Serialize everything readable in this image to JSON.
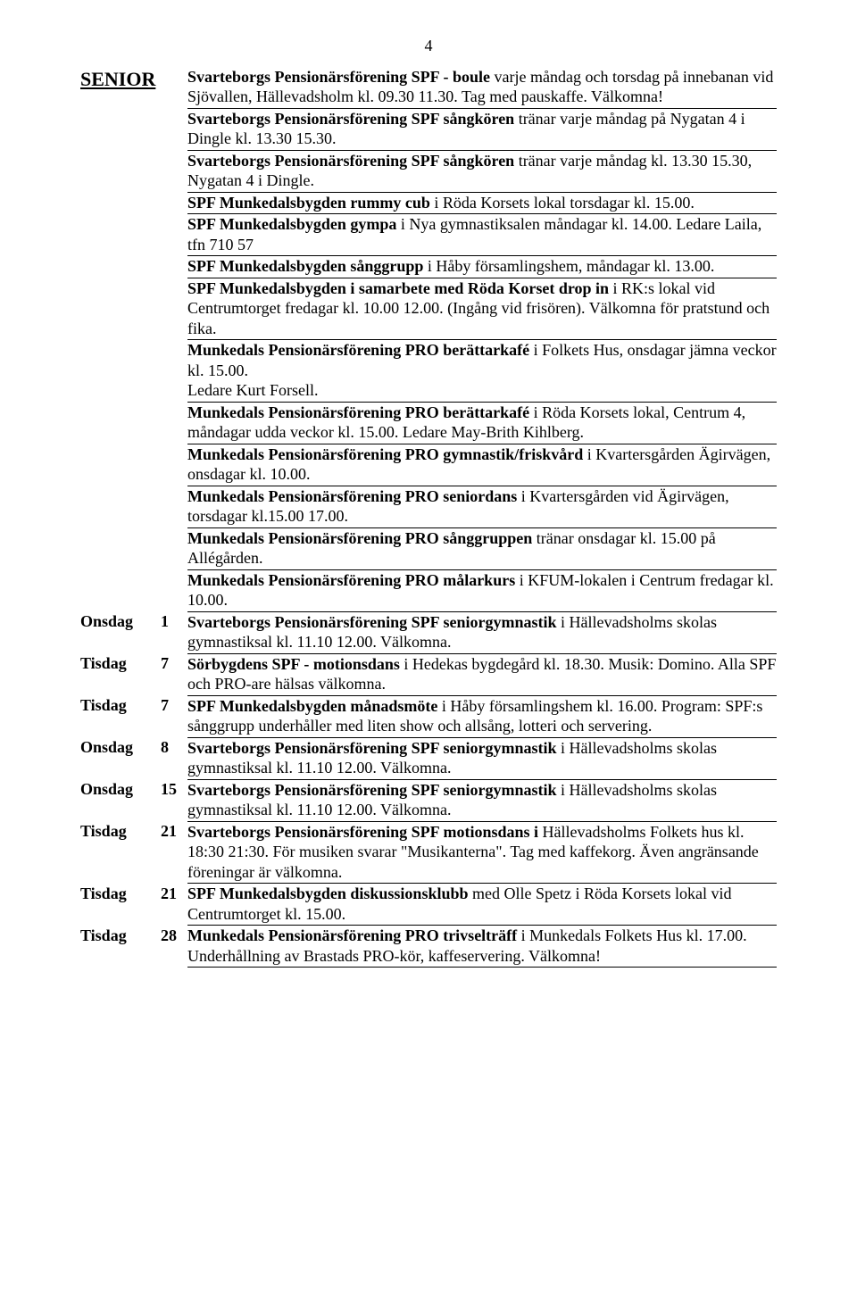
{
  "page_number": "4",
  "heading": "SENIOR",
  "rows": [
    {
      "day": "",
      "num": "",
      "parts": [
        {
          "text": "Svarteborgs Pensionärsförening SPF - boule ",
          "bold": true
        },
        {
          "text": "varje måndag och torsdag på innebanan vid Sjövallen, Hällevadsholm kl. 09.30 11.30. Tag med pauskaffe. Välkomna!",
          "bold": false
        }
      ]
    },
    {
      "day": "",
      "num": "",
      "parts": [
        {
          "text": "Svarteborgs Pensionärsförening SPF sångkören ",
          "bold": true
        },
        {
          "text": "tränar varje måndag på Nygatan 4 i Dingle kl. 13.30 15.30.",
          "bold": false
        }
      ]
    },
    {
      "day": "",
      "num": "",
      "parts": [
        {
          "text": "Svarteborgs Pensionärsförening SPF sångkören ",
          "bold": true
        },
        {
          "text": "tränar varje måndag kl. 13.30 15.30, Nygatan 4 i Dingle.",
          "bold": false
        }
      ]
    },
    {
      "day": "",
      "num": "",
      "parts": [
        {
          "text": "SPF Munkedalsbygden rummy cub ",
          "bold": true
        },
        {
          "text": "i Röda Korsets lokal torsdagar kl. 15.00.",
          "bold": false
        }
      ]
    },
    {
      "day": "",
      "num": "",
      "parts": [
        {
          "text": "SPF Munkedalsbygden gympa ",
          "bold": true
        },
        {
          "text": "i Nya gymnastiksalen måndagar kl. 14.00. Ledare Laila, tfn 710 57",
          "bold": false
        }
      ]
    },
    {
      "day": "",
      "num": "",
      "parts": [
        {
          "text": "SPF Munkedalsbygden sånggrupp ",
          "bold": true
        },
        {
          "text": "i Håby församlingshem, måndagar kl. 13.00.",
          "bold": false
        }
      ]
    },
    {
      "day": "",
      "num": "",
      "parts": [
        {
          "text": "SPF Munkedalsbygden i samarbete med Röda Korset drop in ",
          "bold": true
        },
        {
          "text": "i RK:s lokal vid Centrumtorget fredagar kl. 10.00 12.00. (Ingång vid frisören). Välkomna för pratstund och fika.",
          "bold": false
        }
      ]
    },
    {
      "day": "",
      "num": "",
      "parts": [
        {
          "text": "Munkedals Pensionärsförening PRO berättarkafé ",
          "bold": true
        },
        {
          "text": "i Folkets Hus, onsdagar jämna veckor kl. 15.00.",
          "bold": false
        },
        {
          "text": "\nLedare Kurt Forsell.",
          "bold": false
        }
      ]
    },
    {
      "day": "",
      "num": "",
      "parts": [
        {
          "text": "Munkedals Pensionärsförening PRO berättarkafé ",
          "bold": true
        },
        {
          "text": "i Röda Korsets lokal, Centrum 4, måndagar udda veckor kl. 15.00. Ledare May-Brith Kihlberg.",
          "bold": false
        }
      ]
    },
    {
      "day": "",
      "num": "",
      "parts": [
        {
          "text": "Munkedals Pensionärsförening PRO gymnastik/friskvård ",
          "bold": true
        },
        {
          "text": "i Kvartersgården Ägirvägen, onsdagar kl. 10.00.",
          "bold": false
        }
      ]
    },
    {
      "day": "",
      "num": "",
      "parts": [
        {
          "text": "Munkedals Pensionärsförening PRO seniordans ",
          "bold": true
        },
        {
          "text": "i Kvartersgården vid Ägirvägen, torsdagar kl.15.00 17.00.",
          "bold": false
        }
      ]
    },
    {
      "day": "",
      "num": "",
      "parts": [
        {
          "text": "Munkedals Pensionärsförening PRO sånggruppen ",
          "bold": true
        },
        {
          "text": "tränar onsdagar kl. 15.00 på Allégården.",
          "bold": false
        }
      ]
    },
    {
      "day": "",
      "num": "",
      "parts": [
        {
          "text": "Munkedals Pensionärsförening PRO målarkurs ",
          "bold": true
        },
        {
          "text": "i KFUM-lokalen i Centrum fredagar kl. 10.00.",
          "bold": false
        }
      ]
    },
    {
      "day": "Onsdag",
      "num": "1",
      "parts": [
        {
          "text": "Svarteborgs Pensionärsförening SPF seniorgymnastik ",
          "bold": true
        },
        {
          "text": "i Hällevadsholms skolas gymnastiksal kl. 11.10 12.00. Välkomna.",
          "bold": false
        }
      ]
    },
    {
      "day": "Tisdag",
      "num": "7",
      "parts": [
        {
          "text": "Sörbygdens SPF - motionsdans ",
          "bold": true
        },
        {
          "text": "i Hedekas bygdegård kl. 18.30. Musik: Domino. Alla SPF och PRO-are hälsas välkomna.",
          "bold": false
        }
      ]
    },
    {
      "day": "Tisdag",
      "num": "7",
      "parts": [
        {
          "text": "SPF Munkedalsbygden månadsmöte ",
          "bold": true
        },
        {
          "text": "i Håby församlingshem kl. 16.00. Program: SPF:s sånggrupp underhåller med liten show och allsång, lotteri och servering.",
          "bold": false
        }
      ]
    },
    {
      "day": "Onsdag",
      "num": "8",
      "parts": [
        {
          "text": "Svarteborgs Pensionärsförening SPF seniorgymnastik ",
          "bold": true
        },
        {
          "text": "i Hällevadsholms skolas gymnastiksal kl. 11.10 12.00. Välkomna.",
          "bold": false
        }
      ]
    },
    {
      "day": "Onsdag",
      "num": "15",
      "parts": [
        {
          "text": "Svarteborgs Pensionärsförening SPF seniorgymnastik ",
          "bold": true
        },
        {
          "text": "i Hällevadsholms skolas gymnastiksal kl. 11.10 12.00. Välkomna.",
          "bold": false
        }
      ]
    },
    {
      "day": "Tisdag",
      "num": "21",
      "parts": [
        {
          "text": "Svarteborgs Pensionärsförening SPF motionsdans i ",
          "bold": true
        },
        {
          "text": "Hällevadsholms Folkets hus kl. 18:30 21:30. För musiken svarar \"Musikanterna\". Tag med kaffekorg. Även angränsande föreningar är välkomna.",
          "bold": false
        }
      ]
    },
    {
      "day": "Tisdag",
      "num": "21",
      "parts": [
        {
          "text": "SPF Munkedalsbygden diskussionsklubb ",
          "bold": true
        },
        {
          "text": "med Olle Spetz i Röda Korsets lokal vid Centrumtorget kl. 15.00.",
          "bold": false
        }
      ]
    },
    {
      "day": "Tisdag",
      "num": "28",
      "parts": [
        {
          "text": "Munkedals Pensionärsförening PRO trivselträff ",
          "bold": true
        },
        {
          "text": "i Munkedals Folkets Hus kl. 17.00. Underhållning av Brastads PRO-kör, kaffeservering. Välkomna!",
          "bold": false
        }
      ]
    }
  ]
}
